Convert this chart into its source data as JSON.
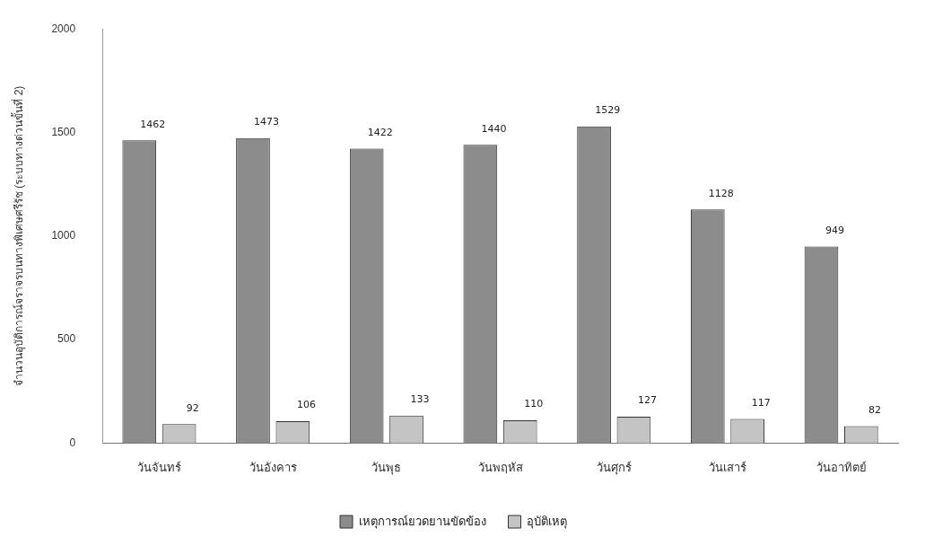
{
  "chart_data": {
    "type": "bar",
    "ylabel": "จำนวนอุบัติการณ์จราจรบนทางพิเศษศรีรัช (ระบบทางด่วนขั้นที่ 2)",
    "categories": [
      "วันจันทร์",
      "วันอังคาร",
      "วันพุธ",
      "วันพฤหัส",
      "วันศุกร์",
      "วันเสาร์",
      "วันอาทิตย์"
    ],
    "series": [
      {
        "name": "เหตุการณ์ยวดยานขัดข้อง",
        "color": "#8c8c8c",
        "values": [
          1462,
          1473,
          1422,
          1440,
          1529,
          1128,
          949
        ]
      },
      {
        "name": "อุบัติเหตุ",
        "color": "#c4c4c4",
        "values": [
          92,
          106,
          133,
          110,
          127,
          117,
          82
        ]
      }
    ],
    "ylim": [
      0,
      2000
    ],
    "yticks": [
      0,
      500,
      1000,
      1500,
      2000
    ],
    "grid": false,
    "legend": "bottom",
    "data_labels": true
  }
}
